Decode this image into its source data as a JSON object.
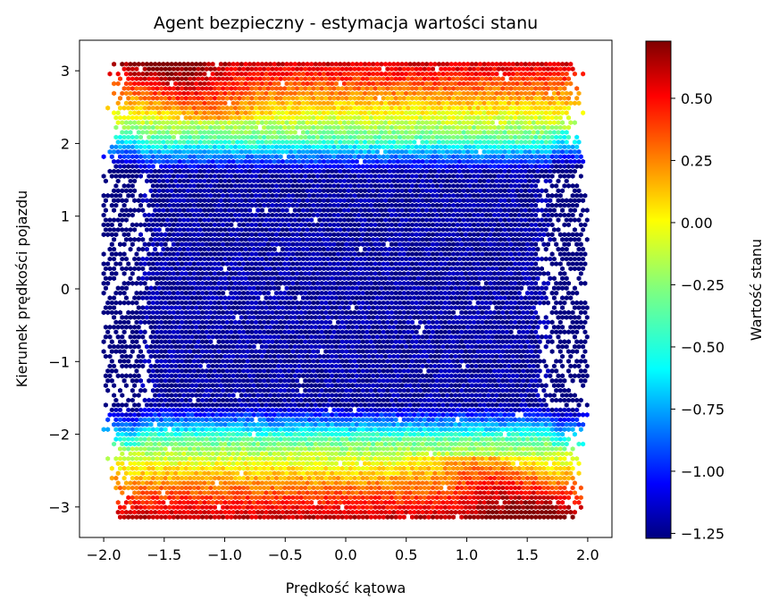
{
  "chart_data": {
    "type": "heatmap",
    "subtype": "hexbin",
    "title": "Agent bezpieczny - estymacja wartości stanu",
    "xlabel": "Prędkość kątowa",
    "ylabel": "Kierunek prędkości pojazdu",
    "xlim": [
      -2.2,
      2.2
    ],
    "ylim": [
      -3.42,
      3.42
    ],
    "x_ticks": [
      -2.0,
      -1.5,
      -1.0,
      -0.5,
      0.0,
      0.5,
      1.0,
      1.5,
      2.0
    ],
    "x_tick_labels": [
      "−2.0",
      "−1.5",
      "−1.0",
      "−0.5",
      "0.0",
      "0.5",
      "1.0",
      "1.5",
      "2.0"
    ],
    "y_ticks": [
      -3,
      -2,
      -1,
      0,
      1,
      2,
      3
    ],
    "y_tick_labels": [
      "−3",
      "−2",
      "−1",
      "0",
      "1",
      "2",
      "3"
    ],
    "colorbar": {
      "label": "Wartość stanu",
      "colormap": "jet",
      "vmin": -1.27,
      "vmax": 0.73,
      "ticks": [
        -1.25,
        -1.0,
        -0.75,
        -0.5,
        -0.25,
        0.0,
        0.25,
        0.5
      ],
      "tick_labels": [
        "−1.25",
        "−1.00",
        "−0.75",
        "−0.50",
        "−0.25",
        "0.00",
        "0.25",
        "0.50"
      ]
    },
    "value_pattern": {
      "central_band": {
        "y_range": [
          -1.7,
          1.7
        ],
        "value": -1.2
      },
      "upper_band": {
        "y_range": [
          2.0,
          3.14
        ],
        "value_range": [
          -0.3,
          0.7
        ]
      },
      "lower_band": {
        "y_range": [
          -3.14,
          -2.0
        ],
        "value_range": [
          -0.3,
          0.7
        ]
      },
      "x_range": [
        -2.0,
        2.0
      ],
      "y_range": [
        -3.14,
        3.14
      ]
    },
    "grid": false,
    "legend": "none"
  }
}
